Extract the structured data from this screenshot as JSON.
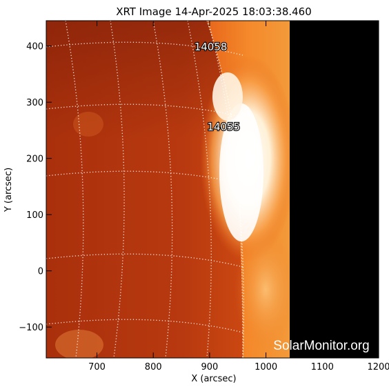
{
  "title": "XRT Image 14-Apr-2025 18:03:38.460",
  "watermark": "SolarMonitor.org",
  "x_axis": {
    "label": "X (arcsec)",
    "range": [
      610,
      1200
    ],
    "ticks": [
      700,
      800,
      900,
      1000,
      1100,
      1200
    ]
  },
  "y_axis": {
    "label": "Y (arcsec)",
    "range": [
      -155,
      445
    ],
    "ticks": [
      -100,
      0,
      100,
      200,
      300,
      400
    ]
  },
  "regions": [
    {
      "label": "14058",
      "x": 902,
      "y": 392
    },
    {
      "label": "14055",
      "x": 925,
      "y": 250
    }
  ],
  "colors": {
    "disk": "#b8390f",
    "limb_glow": "#f07a1a",
    "bright_region": "#ffffff",
    "no_data": "#000000",
    "grid": "#ffffff"
  }
}
